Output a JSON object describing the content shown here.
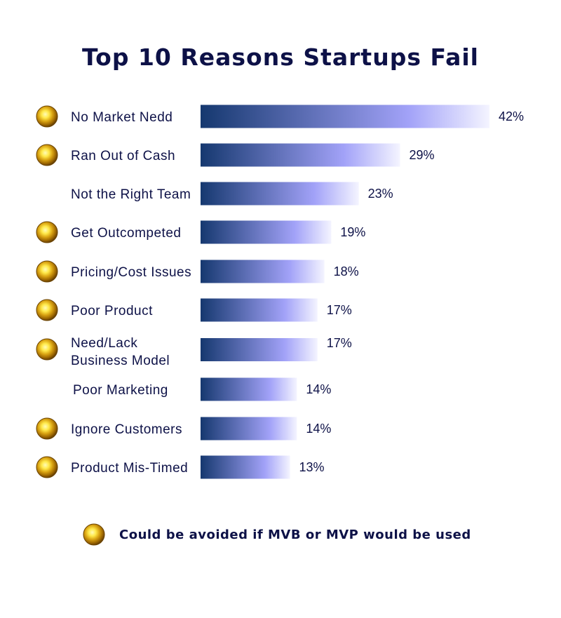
{
  "chart_data": {
    "type": "bar",
    "orientation": "horizontal",
    "title": "Top 10 Reasons Startups Fail",
    "categories": [
      "No Market Nedd",
      "Ran Out of Cash",
      "Not the Right Team",
      "Get Outcompeted",
      "Pricing/Cost Issues",
      "Poor Product",
      "Need/Lack\nBusiness Model",
      "Poor Marketing",
      "Ignore Customers",
      "Product Mis-Timed"
    ],
    "values": [
      42,
      29,
      23,
      19,
      18,
      17,
      17,
      14,
      14,
      13
    ],
    "value_labels": [
      "42%",
      "29%",
      "23%",
      "19%",
      "18%",
      "17%",
      "17%",
      "14%",
      "14%",
      "13%"
    ],
    "avoidable": [
      true,
      true,
      false,
      true,
      true,
      true,
      true,
      false,
      true,
      true
    ],
    "xlim": [
      0,
      42
    ],
    "grid": false,
    "legend": {
      "placement": "bottom-center",
      "text": "Could be avoided if MVB or MVP would be used",
      "icon": "gold-sphere-icon"
    },
    "colors": {
      "title": "#0d1147",
      "bar_start": "#1a3a72",
      "bar_mid": "#a4a4f8",
      "bar_end": "#f2f2ff",
      "sphere_core": "#fff27a",
      "sphere_rim": "#8a5a00"
    }
  }
}
